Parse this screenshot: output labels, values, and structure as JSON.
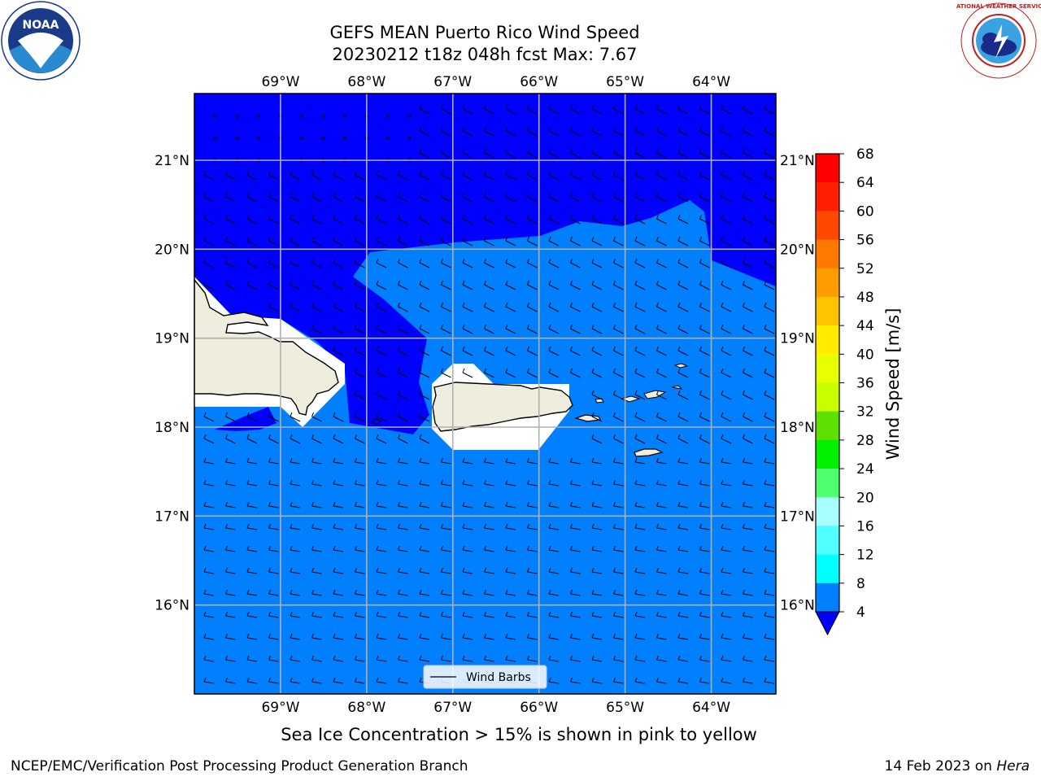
{
  "title_line1": "GEFS MEAN Puerto Rico Wind Speed",
  "title_line2": "20230212 t18z 048h fcst   Max: 7.67",
  "note": "Sea Ice Concentration > 15% is shown in pink to yellow",
  "footer_left": "NCEP/EMC/Verification Post Processing Product Generation Branch",
  "footer_date": "14 Feb 2023 on ",
  "footer_machine": "Hera",
  "legend_label": "Wind Barbs",
  "colorbar_label": "Wind Speed [m/s]",
  "lon_labels": [
    "69°W",
    "68°W",
    "67°W",
    "66°W",
    "65°W",
    "64°W"
  ],
  "lat_labels": [
    "21°N",
    "20°N",
    "19°N",
    "18°N",
    "17°N",
    "16°N"
  ],
  "colorbar_ticks": [
    "68",
    "64",
    "60",
    "56",
    "52",
    "48",
    "44",
    "40",
    "36",
    "32",
    "28",
    "24",
    "20",
    "16",
    "12",
    "8",
    "4"
  ],
  "colorbar_colors": [
    "#ff0000",
    "#ff2000",
    "#ff4800",
    "#ff7800",
    "#ff9c00",
    "#ffc400",
    "#ffec00",
    "#f0ff00",
    "#dcff00",
    "#c4ff00",
    "#60e000",
    "#00e800",
    "#00ff00",
    "#50ff70",
    "#a8ffff",
    "#50ffff",
    "#00ffff",
    "#00d8ff",
    "#0080ff"
  ],
  "map_colors": {
    "dark_blue": "#0000ff",
    "light_blue": "#0080ff",
    "land": "#efedde",
    "grid": "#b0b0b0"
  },
  "logos": {
    "noaa": "NOAA",
    "nws": "NATIONAL WEATHER SERVICE"
  },
  "extent": {
    "lon_min": -70.0,
    "lon_max": -63.25,
    "lat_min": 15.0,
    "lat_max": 21.75
  }
}
